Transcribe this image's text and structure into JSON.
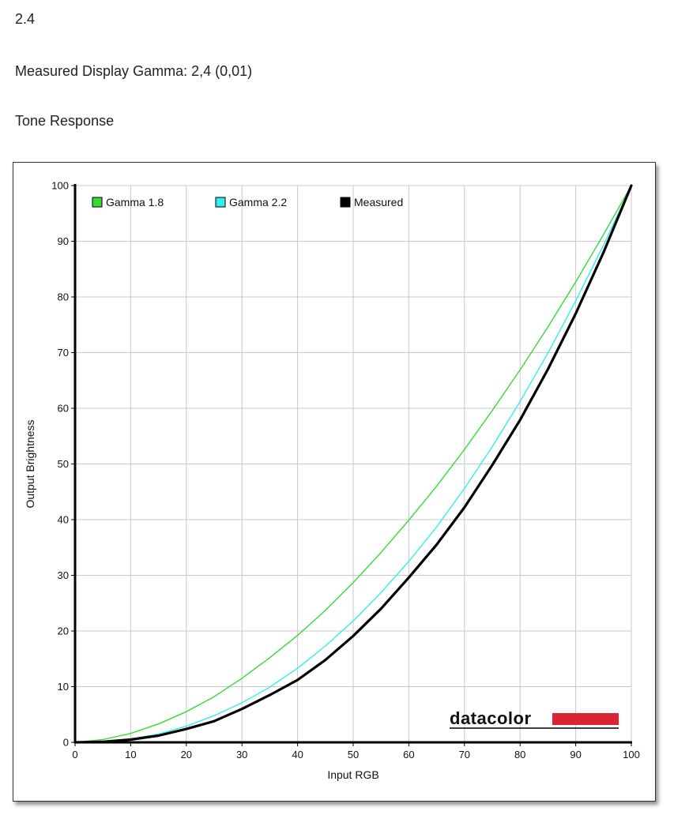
{
  "header": {
    "value_line": "2.4",
    "gamma_line": "Measured Display Gamma: 2,4 (0,01)",
    "section_title": "Tone Response"
  },
  "chart_data": {
    "type": "line",
    "xlabel": "Input RGB",
    "ylabel": "Output Brightness",
    "xlim": [
      0,
      100
    ],
    "ylim": [
      0,
      100
    ],
    "x_ticks": [
      0,
      10,
      20,
      30,
      40,
      50,
      60,
      70,
      80,
      90,
      100
    ],
    "y_ticks": [
      0,
      10,
      20,
      30,
      40,
      50,
      60,
      70,
      80,
      90,
      100
    ],
    "grid": true,
    "legend_position": "top-left",
    "series": [
      {
        "name": "Gamma 1.8",
        "color": "#33dd33",
        "x": [
          0,
          5,
          10,
          15,
          20,
          25,
          30,
          35,
          40,
          45,
          50,
          55,
          60,
          65,
          70,
          75,
          80,
          85,
          90,
          95,
          100
        ],
        "y": [
          0,
          0.5,
          1.6,
          3.3,
          5.5,
          8.2,
          11.5,
          15.2,
          19.2,
          23.7,
          28.7,
          34.1,
          39.9,
          46.0,
          52.6,
          59.6,
          66.9,
          74.6,
          82.7,
          91.2,
          100
        ]
      },
      {
        "name": "Gamma 2.2",
        "color": "#33eeee",
        "x": [
          0,
          5,
          10,
          15,
          20,
          25,
          30,
          35,
          40,
          45,
          50,
          55,
          60,
          65,
          70,
          75,
          80,
          85,
          90,
          95,
          100
        ],
        "y": [
          0,
          0.1,
          0.6,
          1.5,
          2.9,
          4.8,
          7.1,
          9.9,
          13.3,
          17.3,
          21.8,
          26.9,
          32.5,
          38.7,
          45.6,
          53.1,
          61.2,
          69.9,
          79.3,
          89.3,
          100
        ]
      },
      {
        "name": "Measured",
        "color": "#000000",
        "x": [
          0,
          5,
          10,
          15,
          20,
          25,
          30,
          35,
          40,
          45,
          50,
          55,
          60,
          65,
          70,
          75,
          80,
          85,
          90,
          95,
          100
        ],
        "y": [
          0,
          0.1,
          0.5,
          1.2,
          2.4,
          3.8,
          6.0,
          8.5,
          11.2,
          14.8,
          19.1,
          24.0,
          29.6,
          35.5,
          42.2,
          49.8,
          57.9,
          67.0,
          77.0,
          88.0,
          100
        ]
      }
    ]
  },
  "logo": {
    "text": "datacolor",
    "bar_color": "#dd2233"
  }
}
